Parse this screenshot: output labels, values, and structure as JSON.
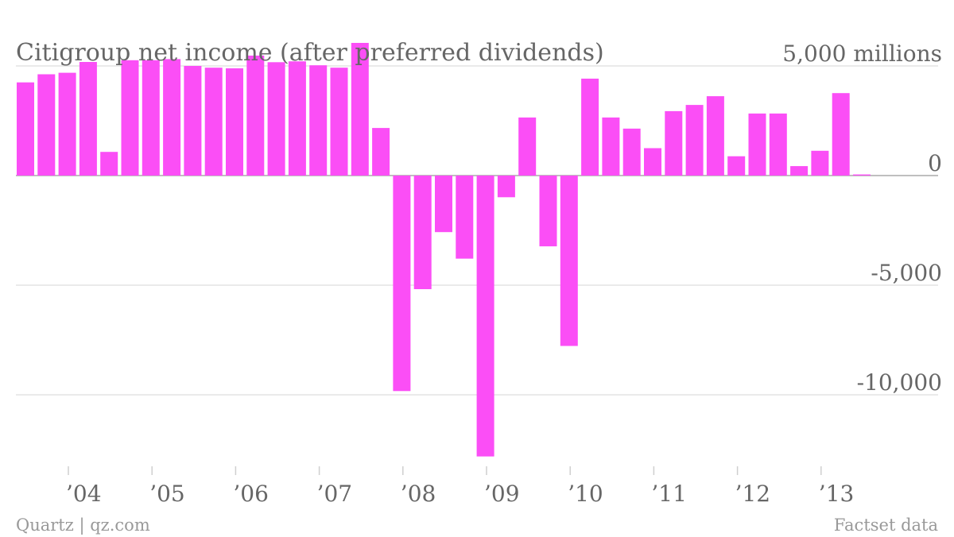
{
  "chart_data": {
    "type": "bar",
    "title": "Citigroup net income (after preferred dividends)",
    "y_unit_label": "5,000 millions",
    "ylim": [
      -13000,
      5000
    ],
    "y_ticks": [
      {
        "value": 5000,
        "label": "5,000 millions"
      },
      {
        "value": 0,
        "label": "0"
      },
      {
        "value": -5000,
        "label": "-5,000"
      },
      {
        "value": -10000,
        "label": "-10,000"
      }
    ],
    "x_labels": [
      {
        "year_index": 0,
        "label": "’04"
      },
      {
        "year_index": 1,
        "label": "’05"
      },
      {
        "year_index": 2,
        "label": "’06"
      },
      {
        "year_index": 3,
        "label": "’07"
      },
      {
        "year_index": 4,
        "label": "’08"
      },
      {
        "year_index": 5,
        "label": "’09"
      },
      {
        "year_index": 6,
        "label": "’10"
      },
      {
        "year_index": 7,
        "label": "’11"
      },
      {
        "year_index": 8,
        "label": "’12"
      },
      {
        "year_index": 9,
        "label": "’13"
      }
    ],
    "bar_color": "#fb4ef6",
    "values": [
      4250,
      4620,
      4690,
      5180,
      1080,
      5260,
      5260,
      5310,
      5000,
      4920,
      4890,
      5470,
      5170,
      5210,
      5030,
      4920,
      6050,
      2170,
      -9830,
      -5180,
      -2580,
      -3790,
      -12810,
      -990,
      2650,
      -3230,
      -7770,
      4420,
      2650,
      2140,
      1250,
      2940,
      3220,
      3620,
      880,
      2830,
      2830,
      430,
      1130,
      3760,
      50
    ]
  },
  "footer": {
    "source_left": "Quartz | qz.com",
    "source_right": "Factset data"
  }
}
